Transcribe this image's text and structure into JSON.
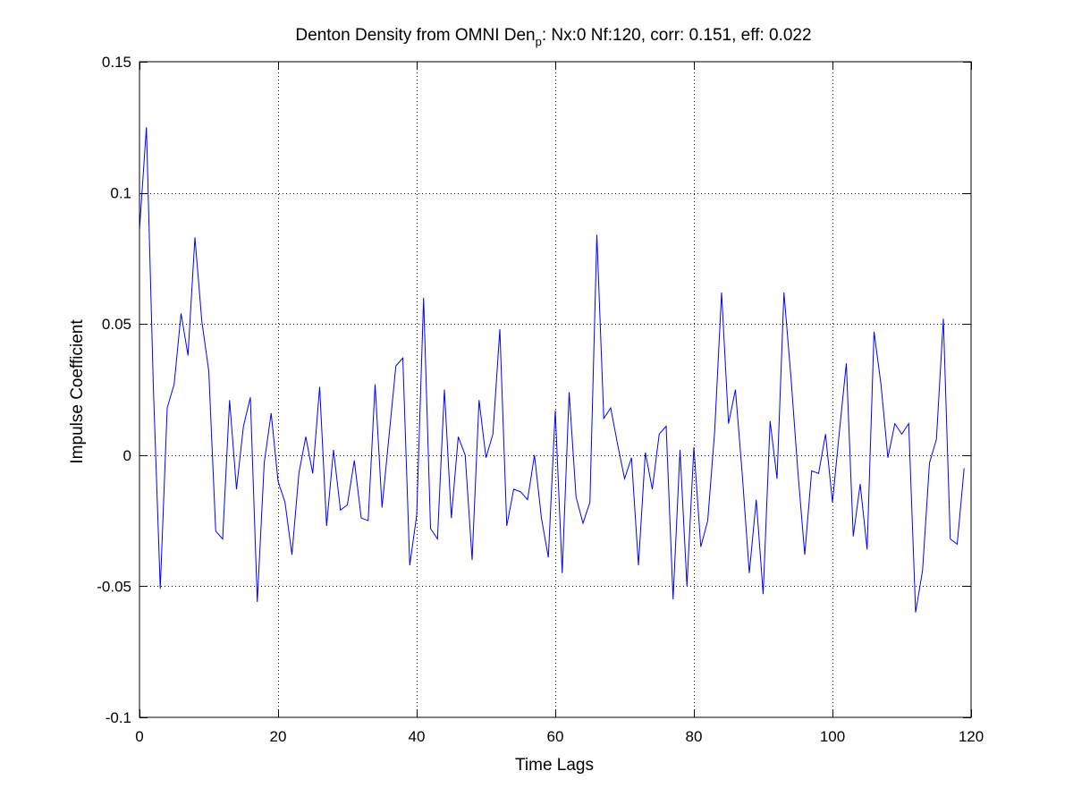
{
  "chart_data": {
    "type": "line",
    "title": {
      "main": "Denton Density from OMNI Den",
      "subscript": "p",
      "suffix": ": Nx:0 Nf:120, corr: 0.151, eff: 0.022"
    },
    "xlabel": "Time Lags",
    "ylabel": "Impulse Coefficient",
    "xlim": [
      0,
      120
    ],
    "ylim": [
      -0.1,
      0.15
    ],
    "xticks": [
      0,
      20,
      40,
      60,
      80,
      100,
      120
    ],
    "xtick_labels": [
      "0",
      "20",
      "40",
      "60",
      "80",
      "100",
      "120"
    ],
    "yticks": [
      -0.1,
      -0.05,
      0,
      0.05,
      0.1,
      0.15
    ],
    "ytick_labels": [
      "-0.1",
      "-0.05",
      "0",
      "0.05",
      "0.1",
      "0.15"
    ],
    "grid": true,
    "grid_style": "dotted",
    "line_color": "#0000ff",
    "axis_color": "#000000",
    "grid_color": "#000000",
    "series": [
      {
        "x": [
          0,
          1,
          2,
          3,
          4,
          5,
          6,
          7,
          8,
          9,
          10,
          11,
          12,
          13,
          14,
          15,
          16,
          17,
          18,
          19,
          20,
          21,
          22,
          23,
          24,
          25,
          26,
          27,
          28,
          29,
          30,
          31,
          32,
          33,
          34,
          35,
          36,
          37,
          38,
          39,
          40,
          41,
          42,
          43,
          44,
          45,
          46,
          47,
          48,
          49,
          50,
          51,
          52,
          53,
          54,
          55,
          56,
          57,
          58,
          59,
          60,
          61,
          62,
          63,
          64,
          65,
          66,
          67,
          68,
          69,
          70,
          71,
          72,
          73,
          74,
          75,
          76,
          77,
          78,
          79,
          80,
          81,
          82,
          83,
          84,
          85,
          86,
          87,
          88,
          89,
          90,
          91,
          92,
          93,
          94,
          95,
          96,
          97,
          98,
          99,
          100,
          101,
          102,
          103,
          104,
          105,
          106,
          107,
          108,
          109,
          110,
          111,
          112,
          113,
          114,
          115,
          116,
          117,
          118,
          119
        ],
        "values": [
          0.086,
          0.125,
          0.026,
          -0.051,
          0.018,
          0.027,
          0.054,
          0.038,
          0.083,
          0.051,
          0.032,
          -0.029,
          -0.032,
          0.021,
          -0.013,
          0.011,
          0.022,
          -0.056,
          -0.003,
          0.016,
          -0.01,
          -0.018,
          -0.038,
          -0.007,
          0.007,
          -0.007,
          0.026,
          -0.027,
          0.002,
          -0.021,
          -0.019,
          -0.002,
          -0.024,
          -0.025,
          0.027,
          -0.02,
          0.007,
          0.034,
          0.037,
          -0.042,
          -0.023,
          0.06,
          -0.028,
          -0.032,
          0.025,
          -0.024,
          0.007,
          0.0,
          -0.04,
          0.021,
          -0.001,
          0.008,
          0.048,
          -0.027,
          -0.013,
          -0.014,
          -0.017,
          0.0,
          -0.024,
          -0.039,
          0.017,
          -0.045,
          0.024,
          -0.016,
          -0.026,
          -0.018,
          0.084,
          0.014,
          0.018,
          0.004,
          -0.009,
          -0.001,
          -0.042,
          0.001,
          -0.013,
          0.008,
          0.011,
          -0.055,
          0.002,
          -0.05,
          0.003,
          -0.035,
          -0.025,
          0.009,
          0.062,
          0.012,
          0.025,
          -0.008,
          -0.045,
          -0.017,
          -0.053,
          0.013,
          -0.009,
          0.062,
          0.03,
          -0.006,
          -0.038,
          -0.006,
          -0.007,
          0.008,
          -0.018,
          0.009,
          0.035,
          -0.031,
          -0.011,
          -0.036,
          0.047,
          0.027,
          -0.001,
          0.012,
          0.008,
          0.012,
          -0.06,
          -0.044,
          -0.003,
          0.006,
          0.052,
          -0.032,
          -0.034,
          -0.005
        ]
      }
    ]
  }
}
